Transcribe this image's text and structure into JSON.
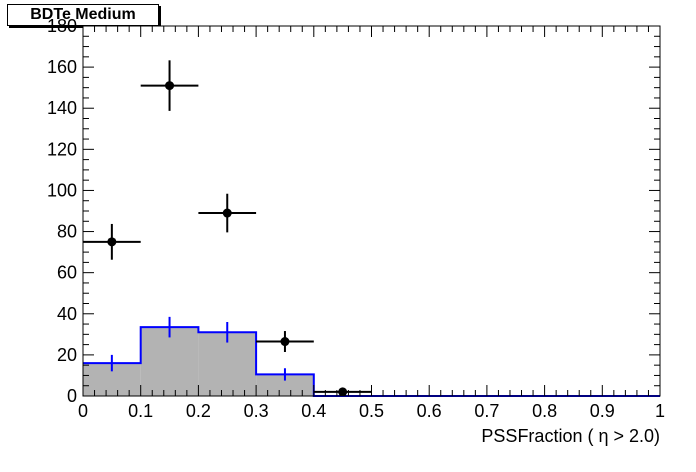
{
  "legend": {
    "label": "BDTe Medium"
  },
  "chart_data": {
    "type": "histogram",
    "title": "BDTe Medium",
    "xlabel": "PSSFraction ( η > 2.0)",
    "ylabel": "",
    "xlim": [
      0,
      1
    ],
    "ylim": [
      0,
      180
    ],
    "x_tick_labels": [
      "0",
      "0.1",
      "0.2",
      "0.3",
      "0.4",
      "0.5",
      "0.6",
      "0.7",
      "0.8",
      "0.9",
      "1"
    ],
    "y_tick_labels": [
      "0",
      "20",
      "40",
      "60",
      "80",
      "100",
      "120",
      "140",
      "160",
      "180"
    ],
    "bin_edges": [
      0,
      0.1,
      0.2,
      0.3,
      0.4,
      0.5,
      0.6,
      0.7,
      0.8,
      0.9,
      1.0
    ],
    "series": [
      {
        "kind": "filled-histogram",
        "values": [
          16,
          33.5,
          31,
          10.5,
          0,
          0,
          0,
          0,
          0,
          0
        ],
        "errors": [
          4,
          5,
          5,
          3,
          0,
          0,
          0,
          0,
          0,
          0
        ],
        "fill_color": "#b3b3b3",
        "line_color": "#0000ff"
      },
      {
        "kind": "points",
        "values": [
          75,
          151,
          89,
          26.5,
          2
        ],
        "errors": [
          8.7,
          12.3,
          9.4,
          5.1,
          1.4
        ],
        "x_half_width": 0.05,
        "color": "#000000"
      }
    ],
    "grid": false
  }
}
